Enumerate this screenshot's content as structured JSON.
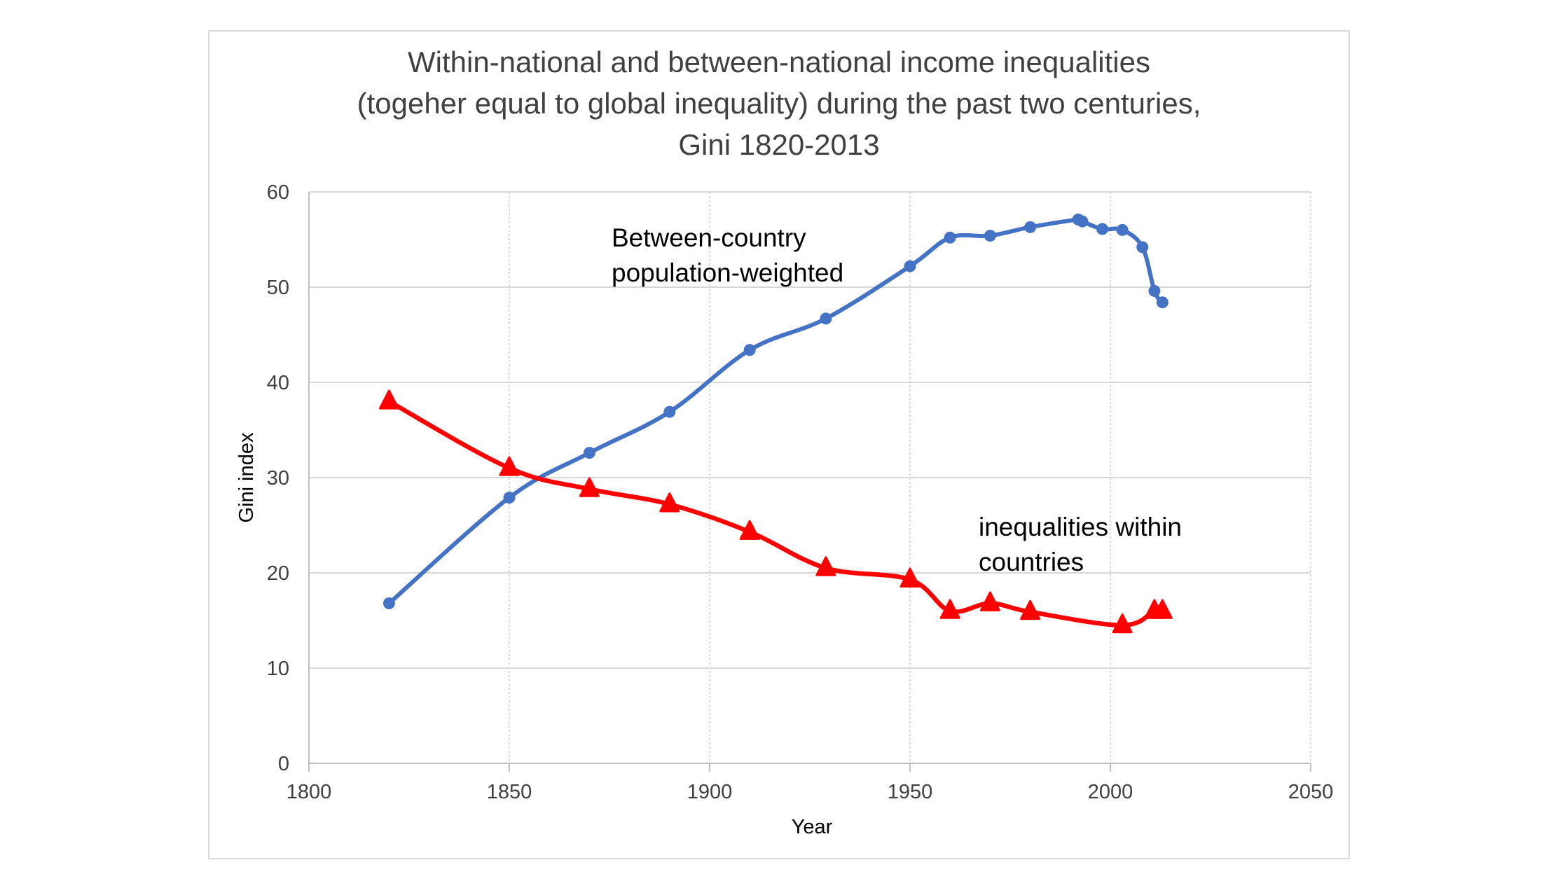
{
  "chart_data": {
    "type": "line",
    "title_lines": [
      "Within-national and between-national income inequalities",
      "(togeher equal to global inequality) during the past two centuries,",
      "Gini 1820-2013"
    ],
    "xlabel": "Year",
    "ylabel": "Gini index",
    "xlim": [
      1800,
      2050
    ],
    "ylim": [
      0,
      60
    ],
    "x_ticks": [
      "1800",
      "1850",
      "1900",
      "1950",
      "2000",
      "2050"
    ],
    "y_ticks": [
      "0",
      "10",
      "20",
      "30",
      "40",
      "50",
      "60"
    ],
    "grid": true,
    "legend": "none",
    "series": [
      {
        "color": "#4472C4",
        "marker": "circle",
        "x": [
          1820,
          1850,
          1870,
          1890,
          1910,
          1929,
          1950,
          1960,
          1970,
          1980,
          1992,
          1993,
          1998,
          2003,
          2008,
          2011,
          2013
        ],
        "y": [
          16.8,
          27.9,
          32.6,
          36.9,
          43.4,
          46.7,
          52.2,
          55.2,
          55.4,
          56.3,
          57.1,
          56.9,
          56.1,
          56.0,
          54.2,
          49.6,
          48.4
        ]
      },
      {
        "color": "#FF0000",
        "marker": "triangle",
        "x": [
          1820,
          1850,
          1870,
          1890,
          1910,
          1929,
          1950,
          1960,
          1970,
          1980,
          2003,
          2011,
          2013
        ],
        "y": [
          38.0,
          31.0,
          28.8,
          27.2,
          24.3,
          20.5,
          19.3,
          16.0,
          16.8,
          15.9,
          14.5,
          16.0,
          16.0
        ]
      }
    ],
    "annotations": [
      {
        "lines": [
          "Between-country",
          "population-weighted"
        ]
      },
      {
        "lines": [
          "inequalities within",
          "countries"
        ]
      }
    ]
  }
}
